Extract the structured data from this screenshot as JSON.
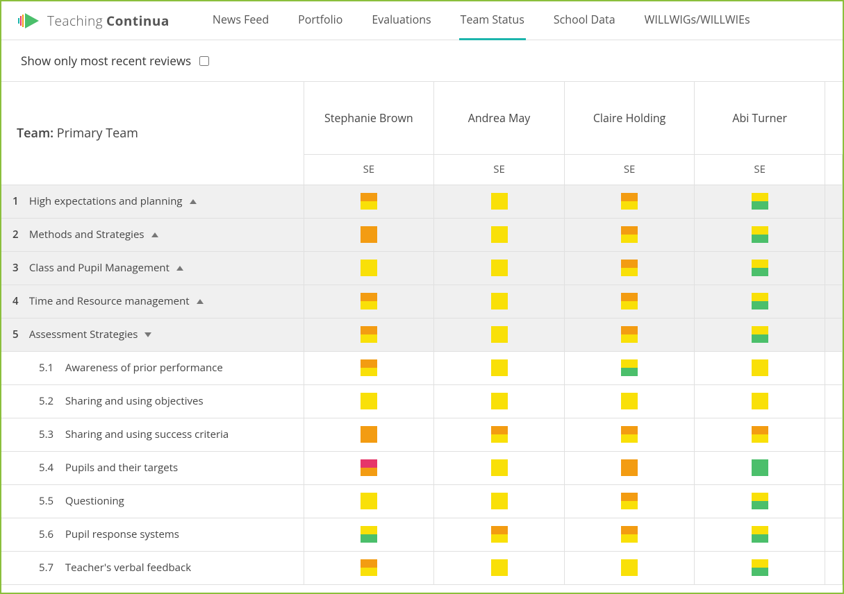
{
  "brand": {
    "light": "Teaching",
    "bold": "Continua"
  },
  "nav": {
    "items": [
      {
        "label": "News Feed",
        "active": false
      },
      {
        "label": "Portfolio",
        "active": false
      },
      {
        "label": "Evaluations",
        "active": false
      },
      {
        "label": "Team Status",
        "active": true
      },
      {
        "label": "School Data",
        "active": false
      },
      {
        "label": "WILLWIGs/WILLWIEs",
        "active": false
      }
    ]
  },
  "filter": {
    "label": "Show only most recent reviews",
    "checked": false
  },
  "table": {
    "team_label": "Team:",
    "team_name": "Primary Team",
    "se_label": "SE",
    "people": [
      "Stephanie Brown",
      "Andrea May",
      "Claire Holding",
      "Abi Turner"
    ],
    "colors": {
      "orange": "#f39c12",
      "yellow": "#f9e008",
      "green": "#4bbf6b",
      "red": "#e6366a",
      "row_alt": "#f0f0f0",
      "border": "#e0e0e0",
      "accent": "#1cb5ac",
      "frame": "#8bbf3c"
    },
    "categories": [
      {
        "num": "1",
        "label": "High expectations and planning",
        "dir": "up",
        "cells": [
          [
            "orange",
            "yellow"
          ],
          [
            "yellow"
          ],
          [
            "orange",
            "yellow"
          ],
          [
            "yellow",
            "green"
          ]
        ]
      },
      {
        "num": "2",
        "label": "Methods and Strategies",
        "dir": "up",
        "cells": [
          [
            "orange"
          ],
          [
            "yellow"
          ],
          [
            "orange",
            "yellow"
          ],
          [
            "yellow",
            "green"
          ]
        ]
      },
      {
        "num": "3",
        "label": "Class and Pupil Management",
        "dir": "up",
        "cells": [
          [
            "yellow"
          ],
          [
            "yellow"
          ],
          [
            "orange",
            "yellow"
          ],
          [
            "yellow",
            "green"
          ]
        ]
      },
      {
        "num": "4",
        "label": "Time and Resource management",
        "dir": "up",
        "cells": [
          [
            "orange",
            "yellow"
          ],
          [
            "yellow"
          ],
          [
            "orange",
            "yellow"
          ],
          [
            "yellow",
            "green"
          ]
        ]
      },
      {
        "num": "5",
        "label": "Assessment Strategies",
        "dir": "down",
        "cells": [
          [
            "orange",
            "yellow"
          ],
          [
            "yellow"
          ],
          [
            "orange",
            "yellow"
          ],
          [
            "yellow",
            "green"
          ]
        ],
        "subs": [
          {
            "num": "5.1",
            "label": "Awareness of prior performance",
            "cells": [
              [
                "orange",
                "yellow"
              ],
              [
                "yellow"
              ],
              [
                "yellow",
                "green"
              ],
              [
                "yellow"
              ]
            ]
          },
          {
            "num": "5.2",
            "label": "Sharing and using objectives",
            "cells": [
              [
                "yellow"
              ],
              [
                "yellow"
              ],
              [
                "yellow"
              ],
              [
                "yellow"
              ]
            ]
          },
          {
            "num": "5.3",
            "label": "Sharing and using success criteria",
            "cells": [
              [
                "orange"
              ],
              [
                "orange",
                "yellow"
              ],
              [
                "orange",
                "yellow"
              ],
              [
                "orange",
                "yellow"
              ]
            ]
          },
          {
            "num": "5.4",
            "label": "Pupils and their targets",
            "cells": [
              [
                "red",
                "orange"
              ],
              [
                "yellow"
              ],
              [
                "orange"
              ],
              [
                "green"
              ]
            ]
          },
          {
            "num": "5.5",
            "label": "Questioning",
            "cells": [
              [
                "yellow"
              ],
              [
                "yellow"
              ],
              [
                "orange",
                "yellow"
              ],
              [
                "yellow",
                "green"
              ]
            ]
          },
          {
            "num": "5.6",
            "label": "Pupil response systems",
            "cells": [
              [
                "yellow",
                "green"
              ],
              [
                "orange",
                "yellow"
              ],
              [
                "orange",
                "yellow"
              ],
              [
                "yellow",
                "green"
              ]
            ]
          },
          {
            "num": "5.7",
            "label": "Teacher's verbal feedback",
            "cells": [
              [
                "orange",
                "yellow"
              ],
              [
                "yellow"
              ],
              [
                "yellow"
              ],
              [
                "yellow",
                "green"
              ]
            ]
          }
        ]
      }
    ]
  }
}
